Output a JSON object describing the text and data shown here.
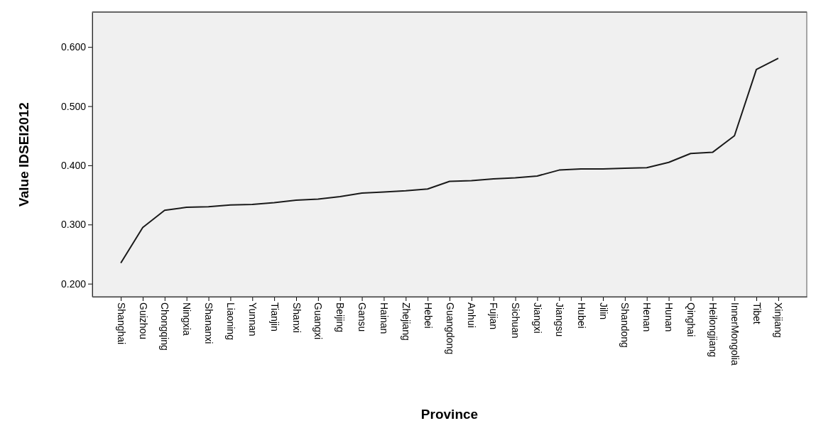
{
  "chart_data": {
    "type": "line",
    "xlabel": "Province",
    "ylabel": "Value IDSEI2012",
    "categories": [
      "Shanghai",
      "Guizhou",
      "Chongqing",
      "Ningxia",
      "Shananxi",
      "Liaoning",
      "Yunnan",
      "Tianjin",
      "Shanxi",
      "Guangxi",
      "Beijing",
      "Gansu",
      "Hainan",
      "Zhejiang",
      "Hebei",
      "Guangdong",
      "Anhui",
      "Fujian",
      "Sichuan",
      "Jiangxi",
      "Jiangsu",
      "Hubei",
      "Jilin",
      "Shandong",
      "Henan",
      "Hunan",
      "Qinghai",
      "Heilongjiang",
      "InnerMongolia",
      "Tibet",
      "Xinjiang"
    ],
    "series": [
      {
        "color": "#1a1a1a",
        "values": [
          0.235,
          0.295,
          0.324,
          0.329,
          0.33,
          0.333,
          0.334,
          0.337,
          0.341,
          0.343,
          0.347,
          0.353,
          0.355,
          0.357,
          0.36,
          0.373,
          0.374,
          0.377,
          0.379,
          0.382,
          0.392,
          0.394,
          0.394,
          0.395,
          0.396,
          0.405,
          0.42,
          0.422,
          0.45,
          0.562,
          0.581
        ]
      }
    ],
    "ylim": [
      0.178,
      0.659
    ],
    "yticks": [
      {
        "value": 0.2,
        "label": "0.200"
      },
      {
        "value": 0.3,
        "label": "0.300"
      },
      {
        "value": 0.4,
        "label": "0.400"
      },
      {
        "value": 0.5,
        "label": "0.500"
      },
      {
        "value": 0.6,
        "label": "0.600"
      }
    ],
    "marker": "none",
    "line_style": "solid"
  }
}
